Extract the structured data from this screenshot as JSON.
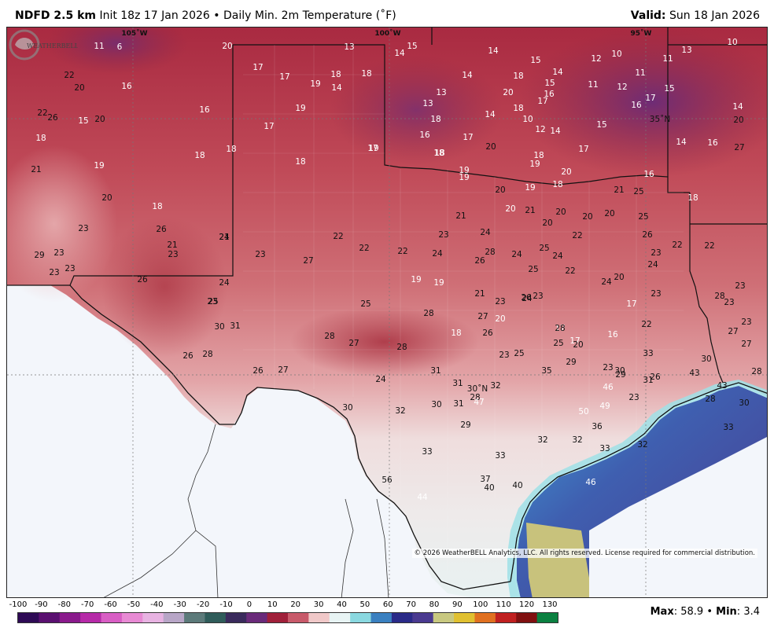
{
  "header": {
    "model": "NDFD 2.5 km",
    "init": "Init 18z 17 Jan 2026",
    "separator": "•",
    "product": "Daily Min. 2m Temperature (˚F)",
    "valid_label": "Valid:",
    "valid_date": "Sun 18 Jan 2026"
  },
  "map": {
    "lon_labels": [
      "105˚W",
      "100˚W",
      "95˚W"
    ],
    "lat_labels": [
      "35˚N",
      "30˚N"
    ],
    "copyright": "© 2026 WeatherBELL Analytics, LLC. All rights reserved. License required for commercial distribution.",
    "logo_text": "WEATHERBELL",
    "colors": {
      "cold_purple": "#6b2a74",
      "dark_red": "#a3243a",
      "mid_red": "#c45a63",
      "light_pink": "#e9b4b4",
      "near_white": "#f1eeee",
      "cyan": "#8fdfe6",
      "blue": "#3a63b0",
      "indigo": "#5b3f93",
      "olive": "#c9c77b",
      "outside": "#f3f6fb"
    },
    "temp_labels": [
      {
        "t": "11",
        "light": true
      },
      {
        "t": "6",
        "light": true
      },
      {
        "t": "20",
        "light": true
      },
      {
        "t": "13",
        "light": true
      },
      {
        "t": "14",
        "light": true
      },
      {
        "t": "15",
        "light": true
      },
      {
        "t": "14",
        "light": true
      },
      {
        "t": "15",
        "light": true
      },
      {
        "t": "14",
        "light": true
      },
      {
        "t": "12",
        "light": true
      },
      {
        "t": "10",
        "light": true
      },
      {
        "t": "11",
        "light": true
      },
      {
        "t": "13",
        "light": true
      },
      {
        "t": "10",
        "light": true
      },
      {
        "t": "22",
        "light": false
      },
      {
        "t": "20",
        "light": false
      },
      {
        "t": "16",
        "light": true
      },
      {
        "t": "17",
        "light": true
      },
      {
        "t": "17",
        "light": true
      },
      {
        "t": "19",
        "light": true
      },
      {
        "t": "18",
        "light": true
      },
      {
        "t": "14",
        "light": true
      },
      {
        "t": "18",
        "light": true
      },
      {
        "t": "14",
        "light": true
      },
      {
        "t": "18",
        "light": true
      },
      {
        "t": "15",
        "light": true
      },
      {
        "t": "16",
        "light": true
      },
      {
        "t": "11",
        "light": true
      },
      {
        "t": "12",
        "light": true
      },
      {
        "t": "11",
        "light": true
      },
      {
        "t": "16",
        "light": true
      },
      {
        "t": "22",
        "light": false
      },
      {
        "t": "26",
        "light": false
      },
      {
        "t": "15",
        "light": true
      },
      {
        "t": "20",
        "light": false
      },
      {
        "t": "19",
        "light": true
      },
      {
        "t": "13",
        "light": true
      },
      {
        "t": "20",
        "light": true
      },
      {
        "t": "17",
        "light": true
      },
      {
        "t": "13",
        "light": true
      },
      {
        "t": "14",
        "light": true
      },
      {
        "t": "17",
        "light": true
      },
      {
        "t": "15",
        "light": true
      },
      {
        "t": "16",
        "light": true
      },
      {
        "t": "14",
        "light": true
      },
      {
        "t": "18",
        "light": true
      },
      {
        "t": "18",
        "light": true
      },
      {
        "t": "10",
        "light": true
      },
      {
        "t": "15",
        "light": true
      },
      {
        "t": "35˚N",
        "light": false
      },
      {
        "t": "20",
        "light": false
      },
      {
        "t": "18",
        "light": true
      },
      {
        "t": "17",
        "light": true
      },
      {
        "t": "17",
        "light": true
      },
      {
        "t": "18",
        "light": true
      },
      {
        "t": "17",
        "light": true
      },
      {
        "t": "16",
        "light": true
      },
      {
        "t": "12",
        "light": true
      },
      {
        "t": "14",
        "light": true
      },
      {
        "t": "16",
        "light": true
      },
      {
        "t": "27",
        "light": false
      },
      {
        "t": "21",
        "light": false
      },
      {
        "t": "19",
        "light": true
      },
      {
        "t": "18",
        "light": true
      },
      {
        "t": "18",
        "light": true
      },
      {
        "t": "18",
        "light": true
      },
      {
        "t": "19",
        "light": true
      },
      {
        "t": "18",
        "light": true
      },
      {
        "t": "20",
        "light": false
      },
      {
        "t": "14",
        "light": true
      },
      {
        "t": "17",
        "light": true
      },
      {
        "t": "16",
        "light": true
      },
      {
        "t": "18",
        "light": true
      },
      {
        "t": "19",
        "light": true
      },
      {
        "t": "20",
        "light": true
      },
      {
        "t": "19",
        "light": true
      },
      {
        "t": "19",
        "light": true
      },
      {
        "t": "20",
        "light": false
      },
      {
        "t": "19",
        "light": true
      },
      {
        "t": "18",
        "light": true
      },
      {
        "t": "21",
        "light": false
      },
      {
        "t": "25",
        "light": false
      },
      {
        "t": "18",
        "light": true
      },
      {
        "t": "18",
        "light": true
      },
      {
        "t": "21",
        "light": false
      },
      {
        "t": "20",
        "light": true
      },
      {
        "t": "21",
        "light": false
      },
      {
        "t": "20",
        "light": false
      },
      {
        "t": "20",
        "light": false
      },
      {
        "t": "20",
        "light": false
      },
      {
        "t": "25",
        "light": false
      },
      {
        "t": "20",
        "light": false
      },
      {
        "t": "23",
        "light": false
      },
      {
        "t": "26",
        "light": false
      },
      {
        "t": "20",
        "light": false
      },
      {
        "t": "21",
        "light": false
      },
      {
        "t": "22",
        "light": false
      },
      {
        "t": "23",
        "light": false
      },
      {
        "t": "24",
        "light": false
      },
      {
        "t": "22",
        "light": false
      },
      {
        "t": "26",
        "light": false
      },
      {
        "t": "29",
        "light": false
      },
      {
        "t": "23",
        "light": false
      },
      {
        "t": "24",
        "light": false
      },
      {
        "t": "23",
        "light": false
      },
      {
        "t": "21",
        "light": false
      },
      {
        "t": "23",
        "light": false
      },
      {
        "t": "22",
        "light": false
      },
      {
        "t": "22",
        "light": false
      },
      {
        "t": "22",
        "light": false
      },
      {
        "t": "23",
        "light": false
      },
      {
        "t": "23",
        "light": false
      },
      {
        "t": "23",
        "light": false
      },
      {
        "t": "23",
        "light": false
      },
      {
        "t": "24",
        "light": false
      },
      {
        "t": "27",
        "light": false
      },
      {
        "t": "28",
        "light": false
      },
      {
        "t": "24",
        "light": false
      },
      {
        "t": "22",
        "light": false
      },
      {
        "t": "24",
        "light": false
      },
      {
        "t": "26",
        "light": false
      },
      {
        "t": "25",
        "light": false
      },
      {
        "t": "24",
        "light": false
      },
      {
        "t": "24",
        "light": false
      },
      {
        "t": "23",
        "light": false
      },
      {
        "t": "25",
        "light": false
      },
      {
        "t": "22",
        "light": false
      },
      {
        "t": "20",
        "light": false
      },
      {
        "t": "17",
        "light": true
      },
      {
        "t": "23",
        "light": false
      },
      {
        "t": "24",
        "light": false
      },
      {
        "t": "23",
        "light": false
      },
      {
        "t": "23",
        "light": false
      },
      {
        "t": "24",
        "light": false
      },
      {
        "t": "26",
        "light": false
      },
      {
        "t": "19",
        "light": true
      },
      {
        "t": "19",
        "light": true
      },
      {
        "t": "21",
        "light": false
      },
      {
        "t": "23",
        "light": false
      },
      {
        "t": "26",
        "light": false
      },
      {
        "t": "25",
        "light": false
      },
      {
        "t": "23",
        "light": false
      },
      {
        "t": "25",
        "light": false
      },
      {
        "t": "28",
        "light": false
      },
      {
        "t": "27",
        "light": false
      },
      {
        "t": "20",
        "light": true
      },
      {
        "t": "17",
        "light": true
      },
      {
        "t": "16",
        "light": true
      },
      {
        "t": "17",
        "light": true
      },
      {
        "t": "22",
        "light": false
      },
      {
        "t": "28",
        "light": false
      },
      {
        "t": "27",
        "light": false
      },
      {
        "t": "27",
        "light": false
      },
      {
        "t": "28",
        "light": false
      },
      {
        "t": "28",
        "light": false
      },
      {
        "t": "27",
        "light": false
      },
      {
        "t": "28",
        "light": false
      },
      {
        "t": "18",
        "light": true
      },
      {
        "t": "26",
        "light": false
      },
      {
        "t": "23",
        "light": false
      },
      {
        "t": "25",
        "light": false
      },
      {
        "t": "25",
        "light": false
      },
      {
        "t": "20",
        "light": false
      },
      {
        "t": "26",
        "light": false
      },
      {
        "t": "28",
        "light": false
      },
      {
        "t": "29",
        "light": false
      },
      {
        "t": "30",
        "light": false
      },
      {
        "t": "33",
        "light": false
      },
      {
        "t": "30",
        "light": false
      },
      {
        "t": "30",
        "light": false
      },
      {
        "t": "31",
        "light": false
      },
      {
        "t": "24",
        "light": false
      },
      {
        "t": "27",
        "light": false
      },
      {
        "t": "26",
        "light": false
      },
      {
        "t": "31",
        "light": false
      },
      {
        "t": "31",
        "light": false
      },
      {
        "t": "35",
        "light": false
      },
      {
        "t": "32",
        "light": false
      },
      {
        "t": "30˚N",
        "light": false
      },
      {
        "t": "28",
        "light": false
      },
      {
        "t": "23",
        "light": false
      },
      {
        "t": "23",
        "light": false
      },
      {
        "t": "26",
        "light": false
      },
      {
        "t": "29",
        "light": false
      },
      {
        "t": "31",
        "light": false
      },
      {
        "t": "43",
        "light": false
      },
      {
        "t": "43",
        "light": false
      },
      {
        "t": "28",
        "light": false
      },
      {
        "t": "30",
        "light": false
      },
      {
        "t": "32",
        "light": false
      },
      {
        "t": "30",
        "light": false
      },
      {
        "t": "31",
        "light": false
      },
      {
        "t": "47",
        "light": true
      },
      {
        "t": "46",
        "light": true
      },
      {
        "t": "49",
        "light": true
      },
      {
        "t": "28",
        "light": false
      },
      {
        "t": "30",
        "light": false
      },
      {
        "t": "29",
        "light": false
      },
      {
        "t": "32",
        "light": false
      },
      {
        "t": "32",
        "light": false
      },
      {
        "t": "36",
        "light": false
      },
      {
        "t": "50",
        "light": true
      },
      {
        "t": "33",
        "light": false
      },
      {
        "t": "33",
        "light": false
      },
      {
        "t": "32",
        "light": false
      },
      {
        "t": "33",
        "light": false
      },
      {
        "t": "33",
        "light": false
      },
      {
        "t": "56",
        "light": false
      },
      {
        "t": "37",
        "light": false
      },
      {
        "t": "40",
        "light": false
      },
      {
        "t": "40",
        "light": false
      },
      {
        "t": "46",
        "light": true
      },
      {
        "t": "44",
        "light": true
      }
    ]
  },
  "scale": {
    "ticks": [
      "-100",
      "-90",
      "-80",
      "-70",
      "-60",
      "-50",
      "-40",
      "-30",
      "-20",
      "-10",
      "0",
      "10",
      "20",
      "30",
      "40",
      "50",
      "60",
      "70",
      "80",
      "90",
      "100",
      "110",
      "120",
      "130"
    ],
    "colors": [
      "#2e0a55",
      "#5a1070",
      "#8a1a8c",
      "#b62aa8",
      "#d85ec4",
      "#e88ad4",
      "#e8b3e2",
      "#b8a6c7",
      "#5c7a7a",
      "#2f5c5a",
      "#3a2a5c",
      "#6a2a7a",
      "#a0203a",
      "#c85a6a",
      "#f0c8c8",
      "#e8f4f4",
      "#8ad8e0",
      "#3a80c0",
      "#2a2a88",
      "#4a3a90",
      "#c8c880",
      "#e0c030",
      "#e07020",
      "#c02020",
      "#801010",
      "#0a8040"
    ]
  },
  "stats": {
    "max_label": "Max",
    "max_value": "58.9",
    "sep": "•",
    "min_label": "Min",
    "min_value": "3.4"
  }
}
